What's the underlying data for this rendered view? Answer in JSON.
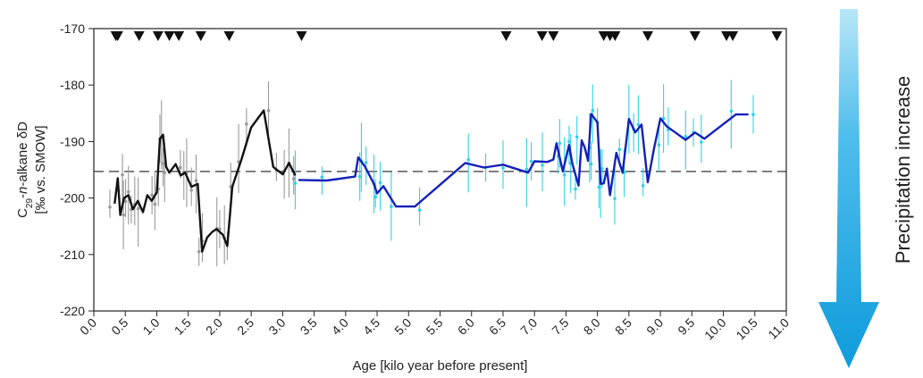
{
  "chart_data": {
    "type": "line",
    "xlabel": "Age [kilo year before present]",
    "ylabel_line1": "C29-n-alkane δD",
    "ylabel_parts": {
      "c": "C",
      "sub": "29",
      "dash1": "-",
      "n": "n",
      "rest": "-alkane δD"
    },
    "ylabel_line2": "[‰ vs. SMOW]",
    "side_label": "Precipitation increase",
    "xlim": [
      0,
      11
    ],
    "ylim": [
      -220,
      -170
    ],
    "x_ticks": [
      "0.0",
      "0.5",
      "1.0",
      "1.5",
      "2.0",
      "2.5",
      "3.0",
      "3.5",
      "4.0",
      "4.5",
      "5.0",
      "5.5",
      "6.0",
      "6.5",
      "7.0",
      "7.5",
      "8.0",
      "8.5",
      "9.0",
      "9.5",
      "10.0",
      "10.5",
      "11.0"
    ],
    "y_ticks": [
      "-170",
      "-180",
      "-190",
      "-200",
      "-210",
      "-220"
    ],
    "reference_line_y": -195.3,
    "arrow_color": "#1aa3e0",
    "series": [
      {
        "color": "#111111",
        "x": [
          0.33,
          0.38,
          0.42,
          0.48,
          0.55,
          0.62,
          0.7,
          0.78,
          0.85,
          0.92,
          1.0,
          1.05,
          1.1,
          1.15,
          1.2,
          1.3,
          1.38,
          1.45,
          1.55,
          1.65,
          1.72,
          1.8,
          1.88,
          1.95,
          2.05,
          2.12,
          2.2,
          2.35,
          2.5,
          2.7,
          2.85,
          3.0,
          3.1,
          3.2
        ],
        "y": [
          -201,
          -196.5,
          -203,
          -200,
          -199.5,
          -202,
          -200.5,
          -202.5,
          -199.5,
          -200.5,
          -199,
          -189.5,
          -188.8,
          -194.5,
          -195.5,
          -194,
          -196,
          -195.5,
          -198,
          -197.5,
          -209.5,
          -207,
          -206,
          -205.5,
          -206.5,
          -208.5,
          -198,
          -193,
          -187.5,
          -184.5,
          -194.5,
          -195.8,
          -193.8,
          -196
        ]
      },
      {
        "color": "#1420b8",
        "x": [
          3.25,
          3.7,
          4.15,
          4.2,
          4.3,
          4.45,
          4.5,
          4.6,
          4.8,
          5.1,
          5.9,
          6.2,
          6.5,
          6.9,
          7.0,
          7.2,
          7.3,
          7.35,
          7.45,
          7.55,
          7.6,
          7.7,
          7.75,
          7.8,
          7.85,
          7.9,
          8.0,
          8.05,
          8.1,
          8.15,
          8.2,
          8.3,
          8.4,
          8.5,
          8.6,
          8.7,
          8.8,
          8.9,
          9.0,
          9.1,
          9.4,
          9.55,
          9.7,
          10.2,
          10.4
        ],
        "y": [
          -196.8,
          -196.9,
          -196.2,
          -192.8,
          -194.3,
          -197.5,
          -199.2,
          -197.9,
          -201.5,
          -201.5,
          -193.8,
          -194.6,
          -194.1,
          -195.5,
          -193.5,
          -193.6,
          -193.2,
          -190.3,
          -195.3,
          -190.6,
          -193.9,
          -197.8,
          -189.8,
          -191.1,
          -193.4,
          -185.1,
          -186.6,
          -197.5,
          -197.4,
          -194.8,
          -199.5,
          -192,
          -195.5,
          -186,
          -188.4,
          -187,
          -197.2,
          -191.2,
          -185.9,
          -187.3,
          -189.7,
          -188.4,
          -189.5,
          -185.2,
          -185.2
        ]
      }
    ],
    "error_bar_colors": [
      "#999999",
      "#33d1e8"
    ],
    "dating_markers_x": [
      0.35,
      0.38,
      0.72,
      1.02,
      1.2,
      1.35,
      1.7,
      2.15,
      3.3,
      6.55,
      7.12,
      7.3,
      8.1,
      8.2,
      8.28,
      8.8,
      9.55,
      10.05,
      10.15,
      10.85
    ]
  }
}
